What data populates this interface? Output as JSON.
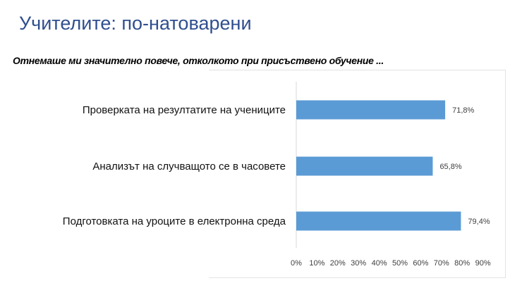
{
  "title": "Учителите: по-натоварени",
  "subtitle": "Отнемаше ми значително повече, отколкото при присъствено обучение ...",
  "chart_data": {
    "type": "bar",
    "orientation": "horizontal",
    "categories": [
      "Проверката на резултатите на учениците",
      "Анализът на случващото се в часовете",
      "Подготовката на уроците в електронна среда"
    ],
    "values": [
      71.8,
      65.8,
      79.4
    ],
    "data_labels": [
      "71,8%",
      "65,8%",
      "79,4%"
    ],
    "xlim": [
      0,
      90
    ],
    "tick_labels": [
      "0%",
      "10%",
      "20%",
      "30%",
      "40%",
      "50%",
      "60%",
      "70%",
      "80%",
      "90%"
    ],
    "bar_color": "#5b9bd5",
    "grid": false,
    "legend": "none"
  }
}
